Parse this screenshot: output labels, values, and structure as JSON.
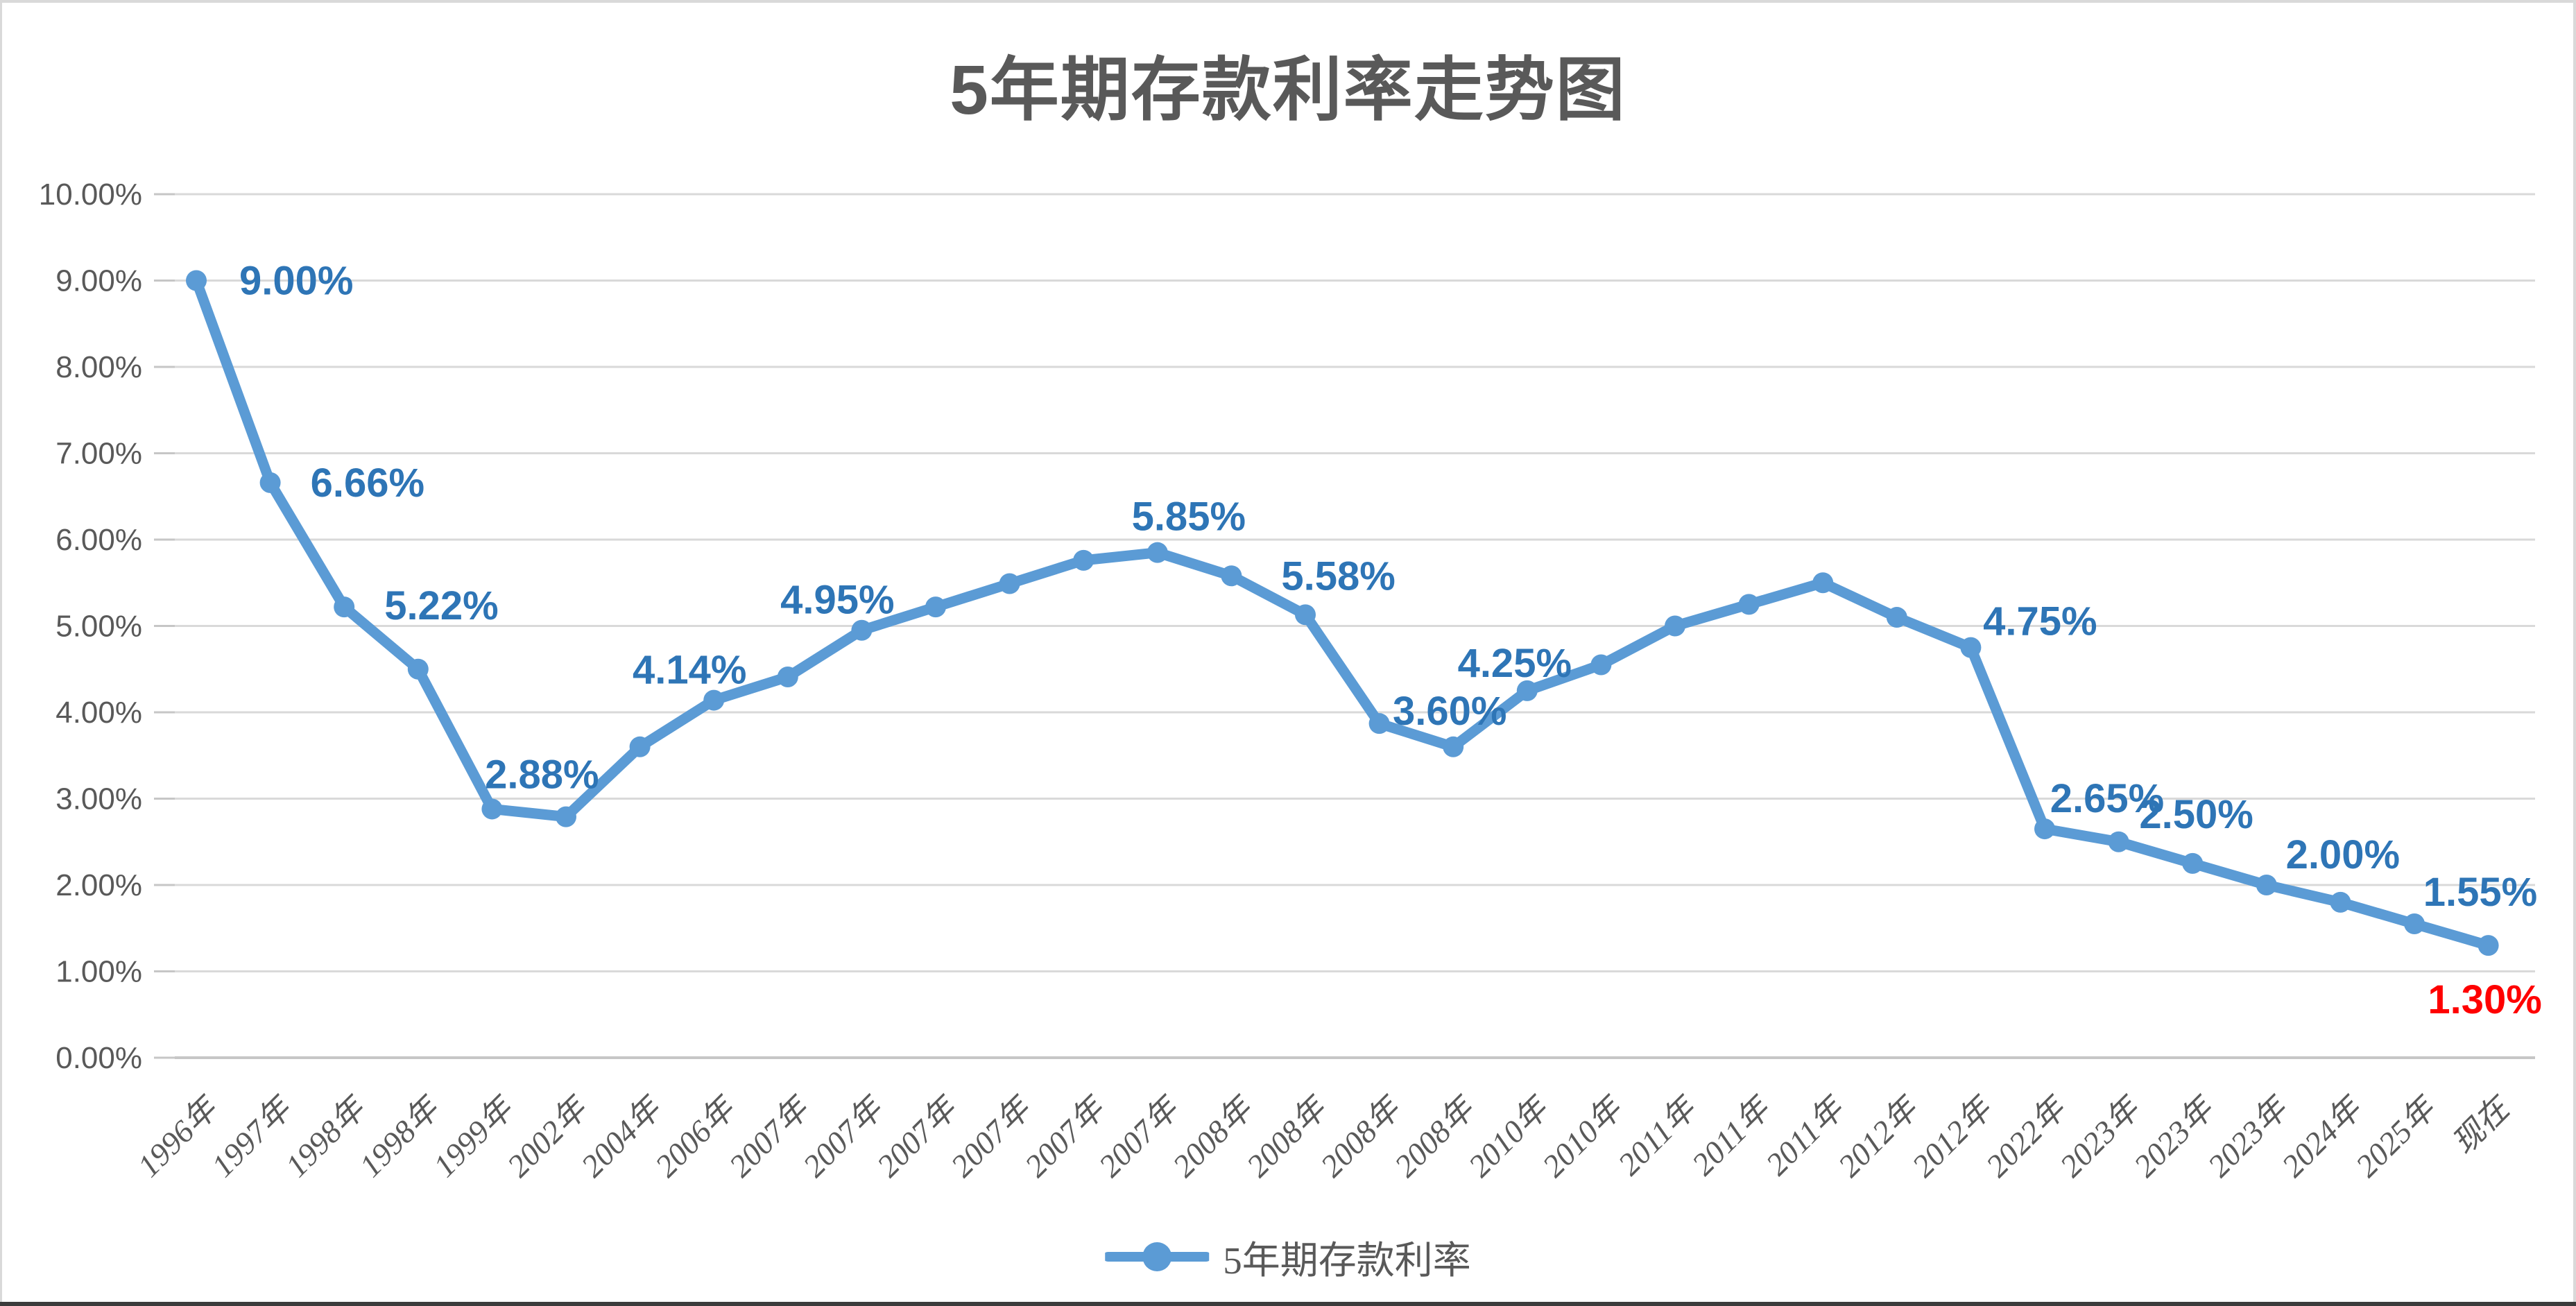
{
  "window": {
    "border_light_color": "#d9d9d9",
    "border_dark_color": "#3b3b3b",
    "background": "#ffffff"
  },
  "chart_data": {
    "type": "line",
    "title": "5年期存款利率走势图",
    "categories": [
      "1996年",
      "1997年",
      "1998年",
      "1998年",
      "1999年",
      "2002年",
      "2004年",
      "2006年",
      "2007年",
      "2007年",
      "2007年",
      "2007年",
      "2007年",
      "2007年",
      "2008年",
      "2008年",
      "2008年",
      "2008年",
      "2010年",
      "2010年",
      "2011年",
      "2011年",
      "2011年",
      "2012年",
      "2012年",
      "2022年",
      "2023年",
      "2023年",
      "2023年",
      "2024年",
      "2025年",
      "现在"
    ],
    "series": [
      {
        "name": "5年期存款利率",
        "color": "#5B9BD5",
        "values": [
          9.0,
          6.66,
          5.22,
          4.5,
          2.88,
          2.79,
          3.6,
          4.14,
          4.41,
          4.95,
          5.22,
          5.49,
          5.76,
          5.85,
          5.58,
          5.13,
          3.87,
          3.6,
          4.25,
          4.55,
          5.0,
          5.25,
          5.5,
          5.1,
          4.75,
          2.65,
          2.5,
          2.25,
          2.0,
          1.8,
          1.55,
          1.3
        ]
      }
    ],
    "ylim": [
      0,
      10
    ],
    "y_tick_labels": [
      "0.00%",
      "1.00%",
      "2.00%",
      "3.00%",
      "4.00%",
      "5.00%",
      "6.00%",
      "7.00%",
      "8.00%",
      "9.00%",
      "10.00%"
    ],
    "x_tick_rotation_deg": -45,
    "grid": "horizontal",
    "legend_position": "bottom",
    "point_labels": [
      {
        "index": 0,
        "text": "9.00%",
        "color": "#2E75B6"
      },
      {
        "index": 1,
        "text": "6.66%",
        "color": "#2E75B6"
      },
      {
        "index": 2,
        "text": "5.22%",
        "color": "#2E75B6"
      },
      {
        "index": 4,
        "text": "2.88%",
        "color": "#2E75B6"
      },
      {
        "index": 7,
        "text": "4.14%",
        "color": "#2E75B6"
      },
      {
        "index": 9,
        "text": "4.95%",
        "color": "#2E75B6"
      },
      {
        "index": 13,
        "text": "5.85%",
        "color": "#2E75B6"
      },
      {
        "index": 14,
        "text": "5.58%",
        "color": "#2E75B6"
      },
      {
        "index": 17,
        "text": "3.60%",
        "color": "#2E75B6"
      },
      {
        "index": 18,
        "text": "4.25%",
        "color": "#2E75B6"
      },
      {
        "index": 24,
        "text": "4.75%",
        "color": "#2E75B6"
      },
      {
        "index": 25,
        "text": "2.65%",
        "color": "#2E75B6"
      },
      {
        "index": 26,
        "text": "2.50%",
        "color": "#2E75B6"
      },
      {
        "index": 28,
        "text": "2.00%",
        "color": "#2E75B6"
      },
      {
        "index": 30,
        "text": "1.55%",
        "color": "#2E75B6"
      },
      {
        "index": 31,
        "text": "1.30%",
        "color": "#FF0000"
      }
    ],
    "style": {
      "line_color": "#5B9BD5",
      "marker_color": "#5B9BD5",
      "grid_color": "#D9D9D9",
      "axis_line_color": "#C6C6C6",
      "axis_text_color": "#595959",
      "title_color": "#595959",
      "label_font_px": 58,
      "axis_font_px": 44
    }
  }
}
